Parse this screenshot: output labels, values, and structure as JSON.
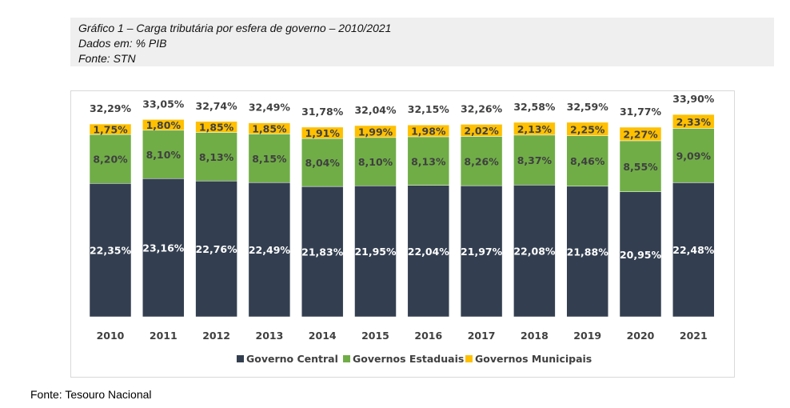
{
  "header": {
    "title": "Gráfico 1 – Carga tributária por esfera de governo – 2010/2021",
    "units": "Dados em: % PIB",
    "source": "Fonte: STN"
  },
  "footer_source": "Fonte: Tesouro Nacional",
  "chart_data": {
    "type": "bar",
    "stacked": true,
    "categories": [
      "2010",
      "2011",
      "2012",
      "2013",
      "2014",
      "2015",
      "2016",
      "2017",
      "2018",
      "2019",
      "2020",
      "2021"
    ],
    "series": [
      {
        "name": "Governo Central",
        "color": "#333f50",
        "values": [
          22.35,
          23.16,
          22.76,
          22.49,
          21.83,
          21.95,
          22.04,
          21.97,
          22.08,
          21.88,
          20.95,
          22.48
        ],
        "labels": [
          "22,35%",
          "23,16%",
          "22,76%",
          "22,49%",
          "21,83%",
          "21,95%",
          "22,04%",
          "21,97%",
          "22,08%",
          "21,88%",
          "20,95%",
          "22,48%"
        ]
      },
      {
        "name": "Governos Estaduais",
        "color": "#70ad47",
        "values": [
          8.2,
          8.1,
          8.13,
          8.15,
          8.04,
          8.1,
          8.13,
          8.26,
          8.37,
          8.46,
          8.55,
          9.09
        ],
        "labels": [
          "8,20%",
          "8,10%",
          "8,13%",
          "8,15%",
          "8,04%",
          "8,10%",
          "8,13%",
          "8,26%",
          "8,37%",
          "8,46%",
          "8,55%",
          "9,09%"
        ]
      },
      {
        "name": "Governos Municipais",
        "color": "#ffc000",
        "values": [
          1.75,
          1.8,
          1.85,
          1.85,
          1.91,
          1.99,
          1.98,
          2.02,
          2.13,
          2.25,
          2.27,
          2.33
        ],
        "labels": [
          "1,75%",
          "1,80%",
          "1,85%",
          "1,85%",
          "1,91%",
          "1,99%",
          "1,98%",
          "2,02%",
          "2,13%",
          "2,25%",
          "2,27%",
          "2,33%"
        ]
      }
    ],
    "totals": [
      32.29,
      33.05,
      32.74,
      32.49,
      31.78,
      32.04,
      32.15,
      32.26,
      32.58,
      32.59,
      31.77,
      33.9
    ],
    "total_labels": [
      "32,29%",
      "33,05%",
      "32,74%",
      "32,49%",
      "31,78%",
      "32,04%",
      "32,15%",
      "32,26%",
      "32,58%",
      "32,59%",
      "31,77%",
      "33,90%"
    ],
    "legend_position": "bottom",
    "grid": false,
    "y_axis_visible": false,
    "ylim": [
      0,
      35
    ]
  }
}
